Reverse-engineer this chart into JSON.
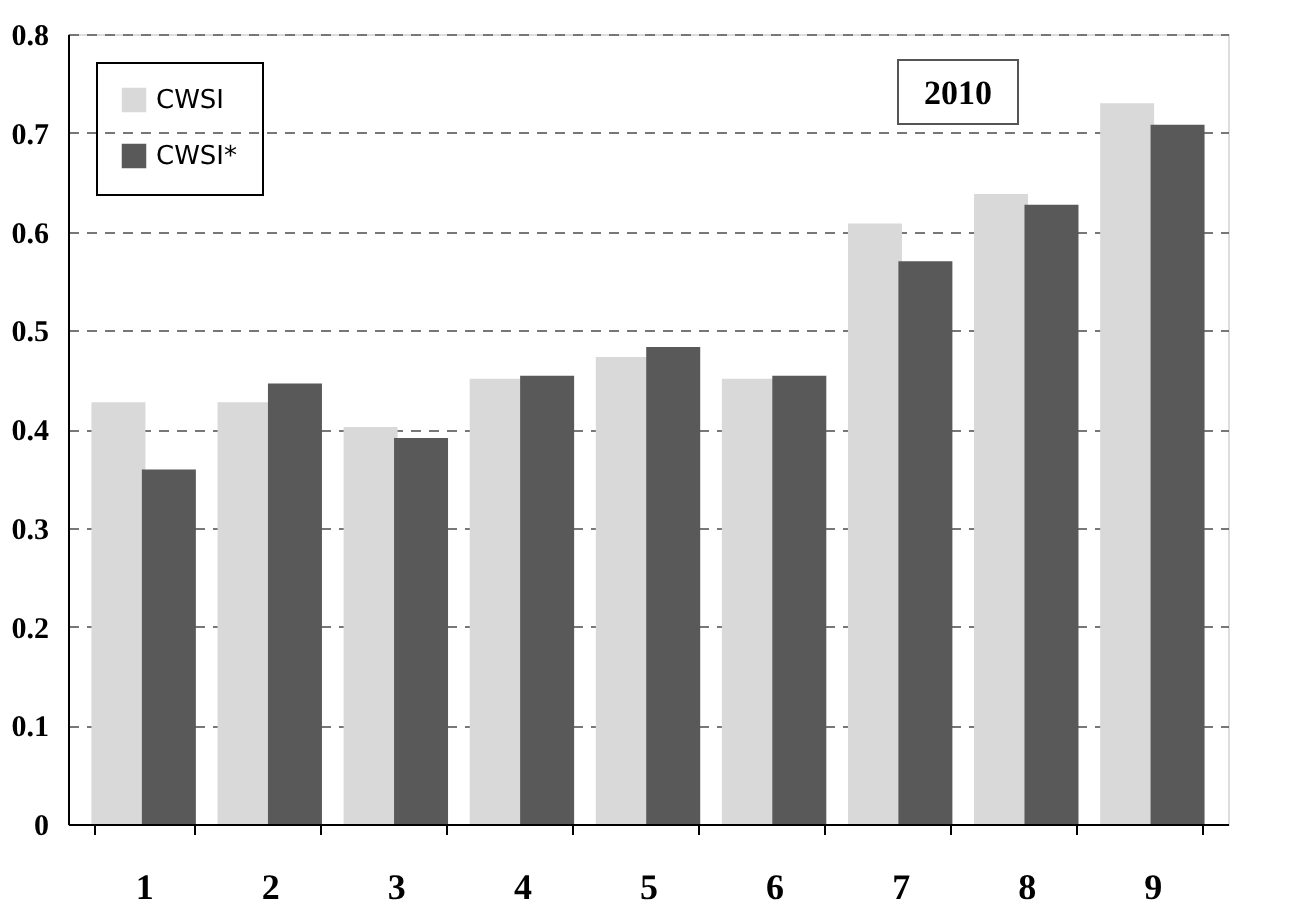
{
  "chart_data": {
    "type": "bar",
    "categories": [
      "1",
      "2",
      "3",
      "4",
      "5",
      "6",
      "7",
      "8",
      "9"
    ],
    "series": [
      {
        "name": "CWSI",
        "color": "#d9d9d9",
        "values": [
          0.427,
          0.427,
          0.402,
          0.451,
          0.473,
          0.451,
          0.608,
          0.638,
          0.73
        ]
      },
      {
        "name": "CWSI*",
        "color": "#595959",
        "values": [
          0.359,
          0.446,
          0.391,
          0.454,
          0.483,
          0.454,
          0.57,
          0.627,
          0.708
        ]
      }
    ],
    "ylim": [
      0,
      0.8
    ],
    "yticks": [
      0,
      0.1,
      0.2,
      0.3,
      0.4,
      0.5,
      0.6,
      0.7,
      0.8
    ],
    "grid": "y",
    "legend": "top left",
    "annotations": [
      "2010"
    ]
  }
}
